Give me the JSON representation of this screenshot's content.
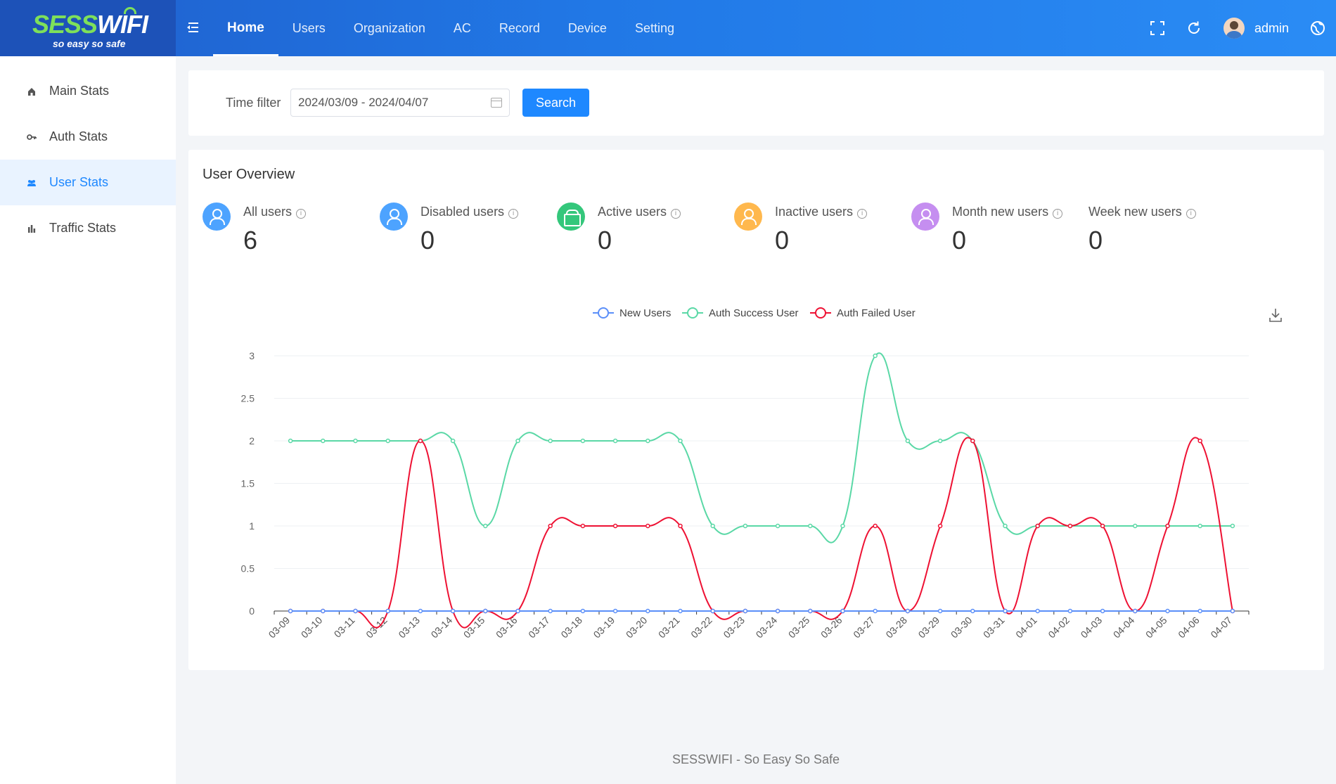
{
  "header": {
    "brand": {
      "name_a": "SESS",
      "name_b": "WIFI",
      "tagline": "so easy so safe"
    },
    "nav": [
      {
        "label": "Home",
        "active": true
      },
      {
        "label": "Users"
      },
      {
        "label": "Organization"
      },
      {
        "label": "AC"
      },
      {
        "label": "Record"
      },
      {
        "label": "Device"
      },
      {
        "label": "Setting"
      }
    ],
    "icons": [
      "menu-fold-icon",
      "fullscreen-icon",
      "refresh-icon",
      "globe-icon"
    ],
    "username": "admin"
  },
  "sidebar": {
    "items": [
      {
        "label": "Main Stats",
        "icon": "home-icon"
      },
      {
        "label": "Auth Stats",
        "icon": "key-icon"
      },
      {
        "label": "User Stats",
        "icon": "users-icon",
        "active": true
      },
      {
        "label": "Traffic Stats",
        "icon": "bar-chart-icon"
      }
    ]
  },
  "filter": {
    "label": "Time filter",
    "date_range": "2024/03/09 - 2024/04/07",
    "search_label": "Search"
  },
  "overview": {
    "title": "User Overview",
    "stats": [
      {
        "label": "All users",
        "value": "6",
        "color": "#4da3ff",
        "icon": "user-icon"
      },
      {
        "label": "Disabled users",
        "value": "0",
        "color": "#4da3ff",
        "icon": "user-icon"
      },
      {
        "label": "Active users",
        "value": "0",
        "color": "#34c77b",
        "icon": "bag-icon"
      },
      {
        "label": "Inactive users",
        "value": "0",
        "color": "#ffb84d",
        "icon": "user-add-icon"
      },
      {
        "label": "Month new users",
        "value": "0",
        "color": "#c58ef0",
        "icon": "user-check-icon"
      },
      {
        "label": "Week new users",
        "value": "0",
        "color": null,
        "icon": null
      }
    ],
    "info_glyph": "i"
  },
  "chart_data": {
    "type": "line",
    "smooth": true,
    "categories": [
      "03-09",
      "03-10",
      "03-11",
      "03-12",
      "03-13",
      "03-14",
      "03-15",
      "03-16",
      "03-17",
      "03-18",
      "03-19",
      "03-20",
      "03-21",
      "03-22",
      "03-23",
      "03-24",
      "03-25",
      "03-26",
      "03-27",
      "03-28",
      "03-29",
      "03-30",
      "03-31",
      "04-01",
      "04-02",
      "04-03",
      "04-04",
      "04-05",
      "04-06",
      "04-07"
    ],
    "series": [
      {
        "name": "New Users",
        "color": "#5b8ff9",
        "values": [
          0,
          0,
          0,
          0,
          0,
          0,
          0,
          0,
          0,
          0,
          0,
          0,
          0,
          0,
          0,
          0,
          0,
          0,
          0,
          0,
          0,
          0,
          0,
          0,
          0,
          0,
          0,
          0,
          0,
          0
        ]
      },
      {
        "name": "Auth Success User",
        "color": "#5ad8a6",
        "values": [
          2,
          2,
          2,
          2,
          2,
          2,
          1,
          2,
          2,
          2,
          2,
          2,
          2,
          1,
          1,
          1,
          1,
          1,
          3,
          2,
          2,
          2,
          1,
          1,
          1,
          1,
          1,
          1,
          1,
          1
        ]
      },
      {
        "name": "Auth Failed User",
        "color": "#ee1133",
        "values": [
          0,
          0,
          0,
          0,
          2,
          0,
          0,
          0,
          1,
          1,
          1,
          1,
          1,
          0,
          0,
          0,
          0,
          0,
          1,
          0,
          1,
          2,
          0,
          1,
          1,
          1,
          0,
          1,
          2,
          0
        ]
      }
    ],
    "yticks": [
      "0",
      "0.5",
      "1",
      "1.5",
      "2",
      "2.5",
      "3"
    ],
    "ylim": [
      0,
      3
    ],
    "legend_position": "top-center",
    "grid": true
  },
  "footer": {
    "text": "SESSWIFI - So Easy So Safe"
  }
}
